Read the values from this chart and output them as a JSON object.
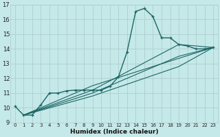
{
  "xlabel": "Humidex (Indice chaleur)",
  "bg_color": "#c5e8e8",
  "grid_color": "#aecece",
  "line_color": "#1a6464",
  "xlim": [
    -0.5,
    23.5
  ],
  "ylim": [
    9,
    17
  ],
  "xticks": [
    0,
    1,
    2,
    3,
    4,
    5,
    6,
    7,
    8,
    9,
    10,
    11,
    12,
    13,
    14,
    15,
    16,
    17,
    18,
    19,
    20,
    21,
    22,
    23
  ],
  "yticks": [
    9,
    10,
    11,
    12,
    13,
    14,
    15,
    16,
    17
  ],
  "main_line_x": [
    0,
    1,
    2,
    3,
    4,
    5,
    6,
    7,
    8,
    9,
    10,
    11,
    12,
    13,
    14,
    15,
    16,
    17,
    18,
    19,
    20,
    21,
    22,
    23
  ],
  "main_line_y": [
    10.1,
    9.5,
    9.5,
    10.2,
    11.0,
    11.0,
    11.15,
    11.2,
    11.2,
    11.2,
    11.2,
    11.45,
    12.1,
    13.8,
    16.55,
    16.75,
    16.2,
    14.75,
    14.75,
    14.3,
    14.2,
    14.0,
    14.0,
    14.1
  ],
  "line2_x": [
    1,
    9,
    23
  ],
  "line2_y": [
    9.5,
    11.5,
    14.1
  ],
  "line3_x": [
    1,
    9,
    19,
    23
  ],
  "line3_y": [
    9.5,
    11.2,
    14.3,
    14.1
  ],
  "line4_x": [
    1,
    9,
    19,
    23
  ],
  "line4_y": [
    9.5,
    11.0,
    13.5,
    14.1
  ],
  "line5_x": [
    1,
    9,
    19,
    23
  ],
  "line5_y": [
    9.5,
    10.8,
    12.8,
    14.1
  ]
}
